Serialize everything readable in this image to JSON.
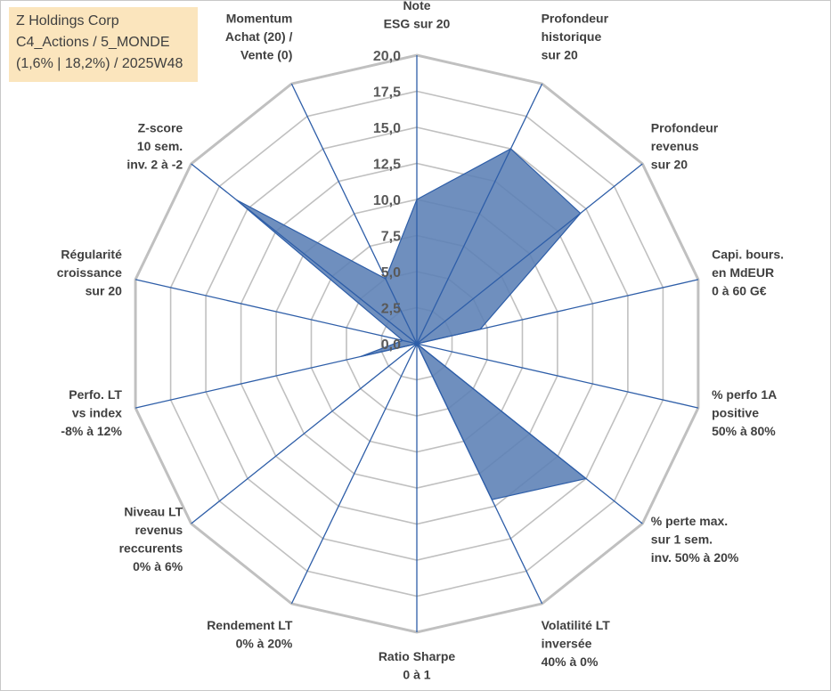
{
  "title_box": {
    "line1": "Z Holdings Corp",
    "line2": "C4_Actions / 5_MONDE",
    "line3": "(1,6% | 18,2%) / 2025W48"
  },
  "colors": {
    "grid": "#c0c0c0",
    "spoke": "#2e5ea8",
    "fill": "#5b7fb5",
    "text": "#404040",
    "title_bg": "#fbe5bd"
  },
  "chart_data": {
    "type": "radar",
    "title": "",
    "scale": {
      "min": 0,
      "max": 20,
      "step": 2.5
    },
    "tick_labels": [
      "0,0",
      "2,5",
      "5,0",
      "7,5",
      "10,0",
      "12,5",
      "15,0",
      "17,5",
      "20,0"
    ],
    "categories": [
      [
        "Note",
        "ESG sur 20"
      ],
      [
        "Profondeur",
        "historique",
        "sur 20"
      ],
      [
        "Profondeur",
        "revenus",
        "sur 20"
      ],
      [
        "Capi. bours.",
        "en MdEUR",
        "0 à 60 G€"
      ],
      [
        "% perfo 1A",
        "positive",
        "50% à 80%"
      ],
      [
        "% perte max.",
        "sur 1 sem.",
        "inv. 50% à 20%"
      ],
      [
        "Volatilité LT",
        "inversée",
        "40% à 0%"
      ],
      [
        "Ratio Sharpe",
        "0 à 1"
      ],
      [
        "Rendement LT",
        "0% à 20%"
      ],
      [
        "Niveau LT",
        "revenus",
        "reccurents",
        "0% à 6%"
      ],
      [
        "Perfo. LT",
        "vs index",
        "-8% à 12%"
      ],
      [
        "Régularité",
        "croissance",
        "sur 20"
      ],
      [
        "Z-score",
        "10 sem.",
        "inv. 2 à -2"
      ],
      [
        "Momentum",
        "Achat (20) /",
        "Vente (0)"
      ]
    ],
    "series": [
      {
        "name": "Z Holdings Corp",
        "values": [
          10.0,
          15.0,
          14.5,
          4.5,
          0.0,
          15.0,
          12.0,
          0.0,
          0.0,
          0.0,
          4.0,
          1.0,
          16.0,
          5.0
        ]
      }
    ]
  }
}
